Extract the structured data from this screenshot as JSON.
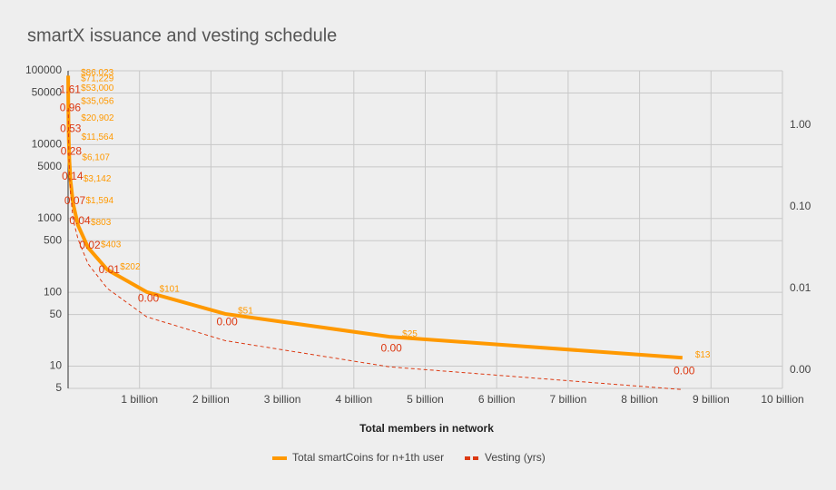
{
  "chart_data": {
    "type": "line",
    "title": "smartX issuance and vesting schedule",
    "x_label": "Total members in network",
    "x": [
      1300000,
      1600000,
      2100000,
      3200000,
      5400000,
      9700000,
      18000000,
      36000000,
      70000000,
      140000000,
      280000000,
      550000000,
      1100000000,
      2200000000,
      4500000000,
      8600000000
    ],
    "series": [
      {
        "name": "Total smartCoins for n+1th user",
        "color": "#ff9900",
        "dashed": false,
        "values": [
          86023,
          71229,
          53000,
          35056,
          20902,
          11564,
          6107,
          3142,
          1594,
          803,
          403,
          202,
          101,
          51,
          25,
          13
        ],
        "value_labels": [
          "$86,023",
          "$71,229",
          "$53,000",
          "$35,056",
          "$20,902",
          "$11,564",
          "$6,107",
          "$3,142",
          "$1,594",
          "$803",
          "$403",
          "$202",
          "$101",
          "$51",
          "$25",
          "$13"
        ]
      },
      {
        "name": "Vesting (yrs)",
        "color": "#dc3912",
        "dashed": true,
        "axis": "y2",
        "values": [
          null,
          null,
          null,
          1.61,
          0.96,
          0.53,
          0.28,
          0.14,
          0.07,
          0.04,
          0.02,
          0.01,
          0.0045,
          0.0023,
          0.0011,
          0.00058
        ],
        "value_labels": [
          null,
          null,
          null,
          "1.61",
          "0.96",
          "0.53",
          "0.28",
          "0.14",
          "0.07",
          "0.04",
          "0.02",
          "0.01",
          "0.00",
          "0.00",
          "0.00",
          "0.00"
        ]
      }
    ],
    "xlim": [
      0,
      10000000000
    ],
    "xticks": [
      {
        "value": 1000000000,
        "label": "1 billion"
      },
      {
        "value": 2000000000,
        "label": "2 billion"
      },
      {
        "value": 3000000000,
        "label": "3 billion"
      },
      {
        "value": 4000000000,
        "label": "4 billion"
      },
      {
        "value": 5000000000,
        "label": "5 billion"
      },
      {
        "value": 6000000000,
        "label": "6 billion"
      },
      {
        "value": 7000000000,
        "label": "7 billion"
      },
      {
        "value": 8000000000,
        "label": "8 billion"
      },
      {
        "value": 9000000000,
        "label": "9 billion"
      },
      {
        "value": 10000000000,
        "label": "10 billion"
      }
    ],
    "ylim": [
      5,
      100000
    ],
    "yticks": [
      5,
      10,
      50,
      100,
      500,
      1000,
      5000,
      10000,
      50000,
      100000
    ],
    "ylog": true,
    "y2lim": [
      0.0006,
      4.6
    ],
    "y2ticks": [
      {
        "value": 0.001,
        "label": "0.00"
      },
      0.01,
      {
        "value": 0.1,
        "label": "0.10"
      },
      {
        "value": 1,
        "label": "1.00"
      }
    ],
    "y2log": true,
    "grid": true,
    "legend": "bottom"
  }
}
